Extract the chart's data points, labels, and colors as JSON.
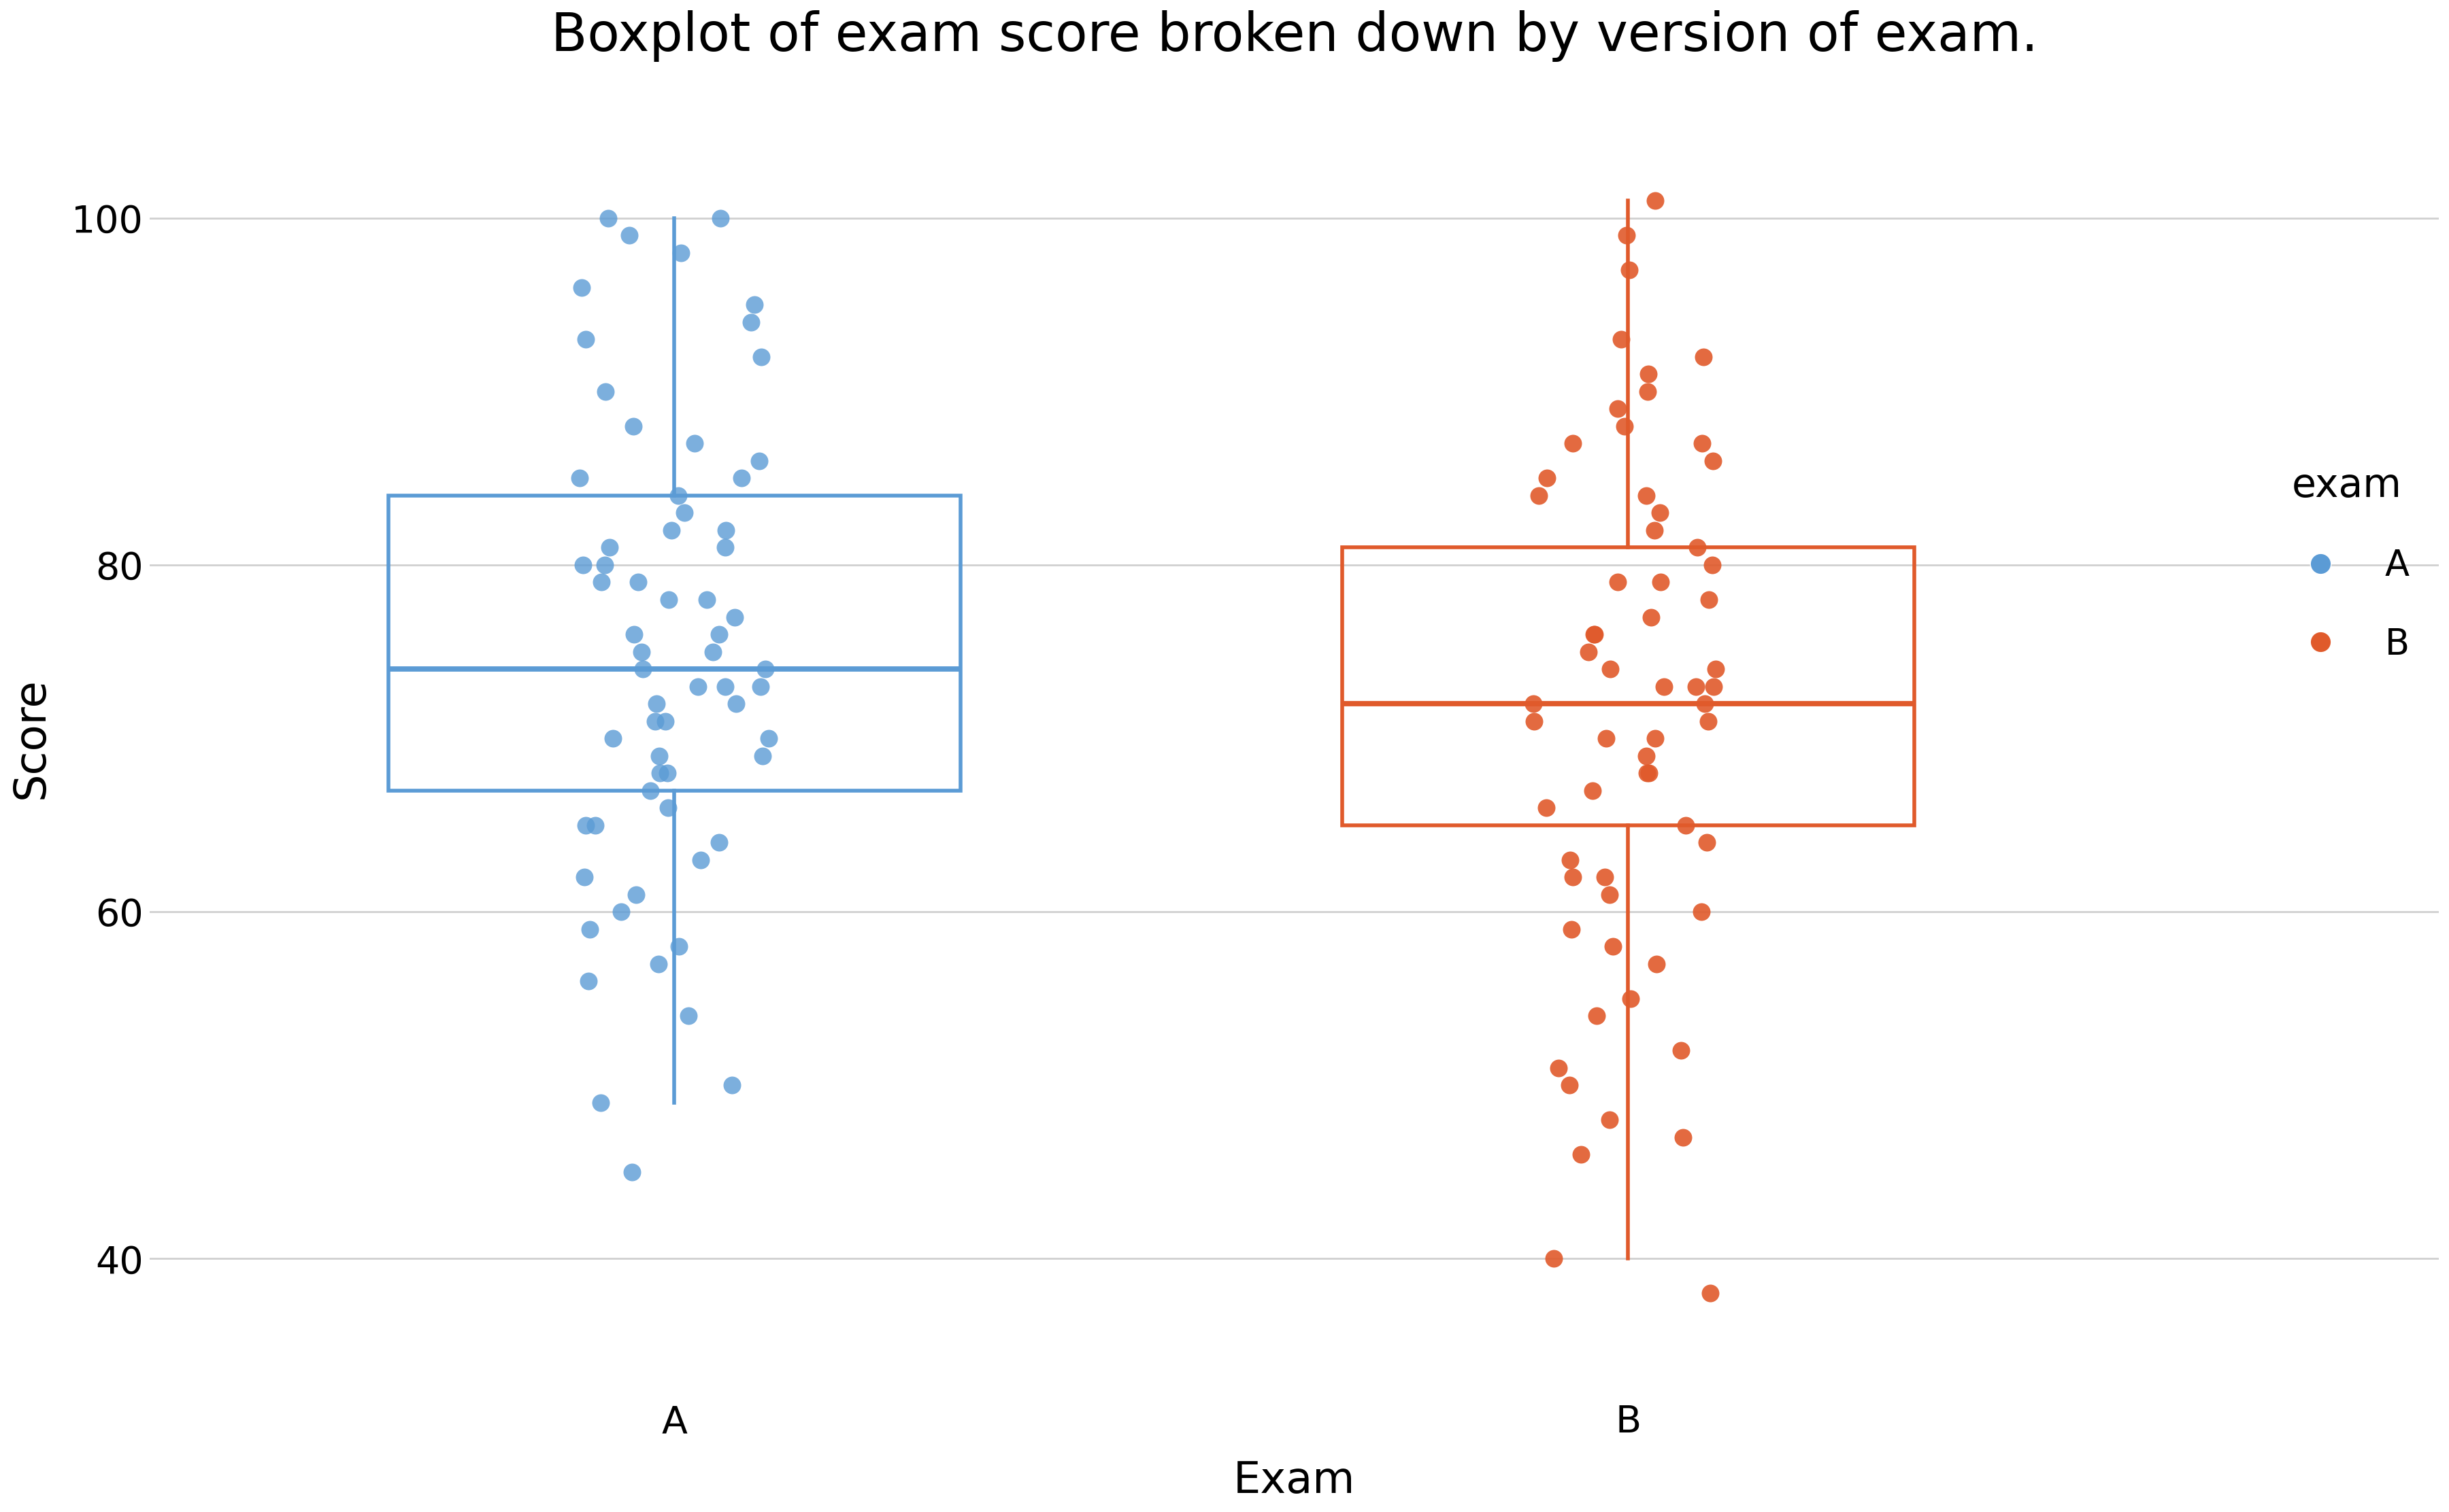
{
  "title": "Boxplot of exam score broken down by version of exam.",
  "xlabel": "Exam",
  "ylabel": "Score",
  "background_color": "#ffffff",
  "grid_color": "#d0d0d0",
  "categories": [
    "A",
    "B"
  ],
  "colors": {
    "A": "#5B9BD5",
    "B": "#E05A2B"
  },
  "box_A": {
    "q1": 67,
    "median": 74,
    "q3": 84,
    "whisker_low": 49,
    "whisker_high": 100
  },
  "box_B": {
    "q1": 65,
    "median": 72,
    "q3": 81,
    "whisker_low": 40,
    "whisker_high": 101
  },
  "jitter_A": [
    100,
    100,
    99,
    98,
    96,
    95,
    94,
    93,
    92,
    90,
    88,
    87,
    86,
    85,
    85,
    84,
    83,
    82,
    82,
    81,
    81,
    80,
    80,
    79,
    79,
    78,
    78,
    77,
    76,
    76,
    75,
    75,
    74,
    74,
    73,
    73,
    73,
    72,
    72,
    71,
    71,
    70,
    70,
    69,
    69,
    68,
    68,
    67,
    66,
    65,
    65,
    64,
    63,
    62,
    61,
    60,
    59,
    58,
    57,
    56,
    54,
    50,
    49,
    45
  ],
  "jitter_B": [
    101,
    99,
    97,
    93,
    92,
    91,
    90,
    89,
    88,
    87,
    87,
    86,
    85,
    84,
    84,
    83,
    82,
    81,
    80,
    79,
    79,
    78,
    77,
    76,
    76,
    75,
    74,
    74,
    73,
    73,
    73,
    72,
    72,
    71,
    71,
    70,
    70,
    69,
    68,
    68,
    67,
    66,
    65,
    64,
    63,
    62,
    62,
    61,
    60,
    59,
    58,
    57,
    55,
    54,
    52,
    51,
    50,
    48,
    47,
    46,
    40,
    38
  ],
  "ylim": [
    32,
    108
  ],
  "yticks": [
    40,
    60,
    80,
    100
  ],
  "legend_title": "exam",
  "legend_labels": [
    "A",
    "B"
  ],
  "title_fontsize": 56,
  "axis_label_fontsize": 46,
  "tick_fontsize": 40,
  "legend_fontsize": 38,
  "legend_title_fontsize": 42
}
